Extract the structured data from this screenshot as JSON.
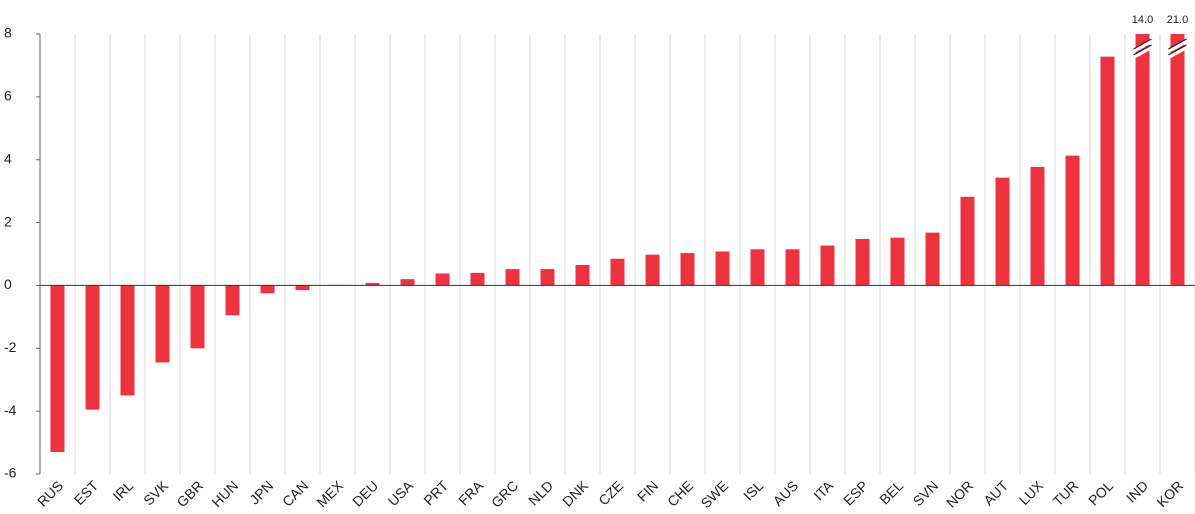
{
  "chart_data": {
    "type": "bar",
    "categories": [
      "RUS",
      "EST",
      "IRL",
      "SVK",
      "GBR",
      "HUN",
      "JPN",
      "CAN",
      "MEX",
      "DEU",
      "USA",
      "PRT",
      "FRA",
      "GRC",
      "NLD",
      "DNK",
      "CZE",
      "FIN",
      "CHE",
      "SWE",
      "ISL",
      "AUS",
      "ITA",
      "ESP",
      "BEL",
      "SVN",
      "NOR",
      "AUT",
      "LUX",
      "TUR",
      "POL",
      "IND",
      "KOR"
    ],
    "values": [
      -5.3,
      -3.95,
      -3.5,
      -2.45,
      -2.0,
      -0.95,
      -0.25,
      -0.15,
      0.02,
      0.08,
      0.2,
      0.38,
      0.4,
      0.52,
      0.52,
      0.65,
      0.85,
      0.98,
      1.03,
      1.08,
      1.15,
      1.15,
      1.27,
      1.48,
      1.52,
      1.68,
      2.82,
      3.43,
      3.77,
      4.13,
      7.28,
      14.0,
      21.0
    ],
    "value_labels": [
      null,
      null,
      null,
      null,
      null,
      null,
      null,
      null,
      null,
      null,
      null,
      null,
      null,
      null,
      null,
      null,
      null,
      null,
      null,
      null,
      null,
      null,
      null,
      null,
      null,
      null,
      null,
      null,
      null,
      null,
      null,
      "14.0",
      "21.0"
    ],
    "color": "#ee3340",
    "ylim": [
      -6,
      8
    ],
    "yticks": [
      -6,
      -4,
      -2,
      0,
      2,
      4,
      6,
      8
    ],
    "grid": true
  }
}
